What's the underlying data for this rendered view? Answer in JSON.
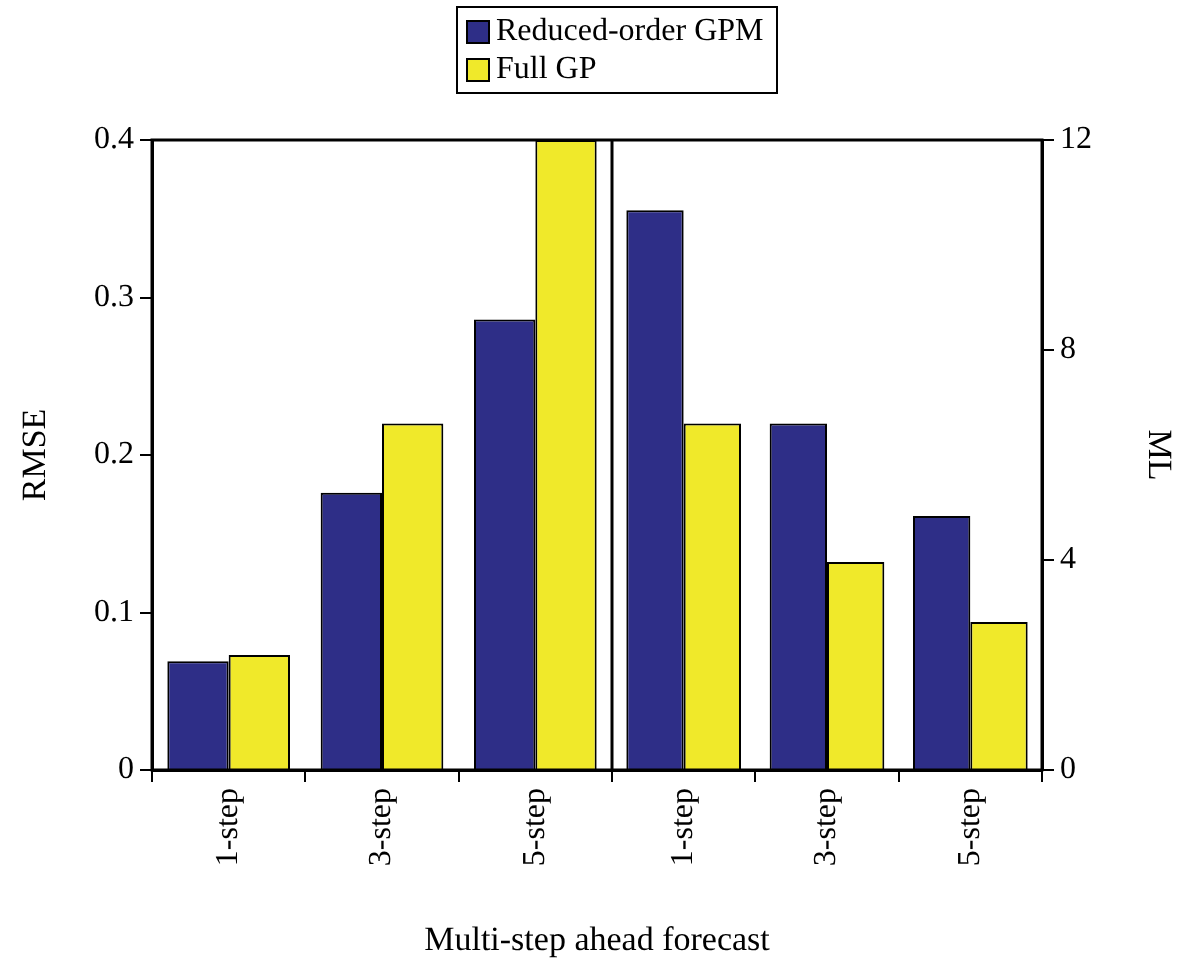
{
  "chart_data": [
    {
      "type": "bar",
      "categories": [
        "1-step",
        "3-step",
        "5-step"
      ],
      "ylabel": "RMSE",
      "xlabel": "Multi-step ahead forecast",
      "ylim": [
        0,
        0.4
      ],
      "yticks": [
        0,
        0.1,
        0.2,
        0.3,
        0.4
      ],
      "legend": "top",
      "series": [
        {
          "name": "Reduced-order GPM",
          "color": "#2e2e87",
          "values": [
            0.069,
            0.176,
            0.286
          ]
        },
        {
          "name": "Full GP",
          "color": "#f0e92a",
          "values": [
            0.073,
            0.22,
            0.4
          ]
        }
      ]
    },
    {
      "type": "bar",
      "categories": [
        "1-step",
        "3-step",
        "5-step"
      ],
      "y2label": "ML",
      "y2lim": [
        0,
        12
      ],
      "y2ticks": [
        0,
        4,
        8,
        12
      ],
      "series": [
        {
          "color": "#2e2e87",
          "axis": "y2",
          "values": [
            10.66,
            6.6,
            4.84
          ]
        },
        {
          "color": "#f0e92a",
          "axis": "y2",
          "values": [
            6.6,
            3.96,
            2.82
          ]
        }
      ]
    }
  ]
}
